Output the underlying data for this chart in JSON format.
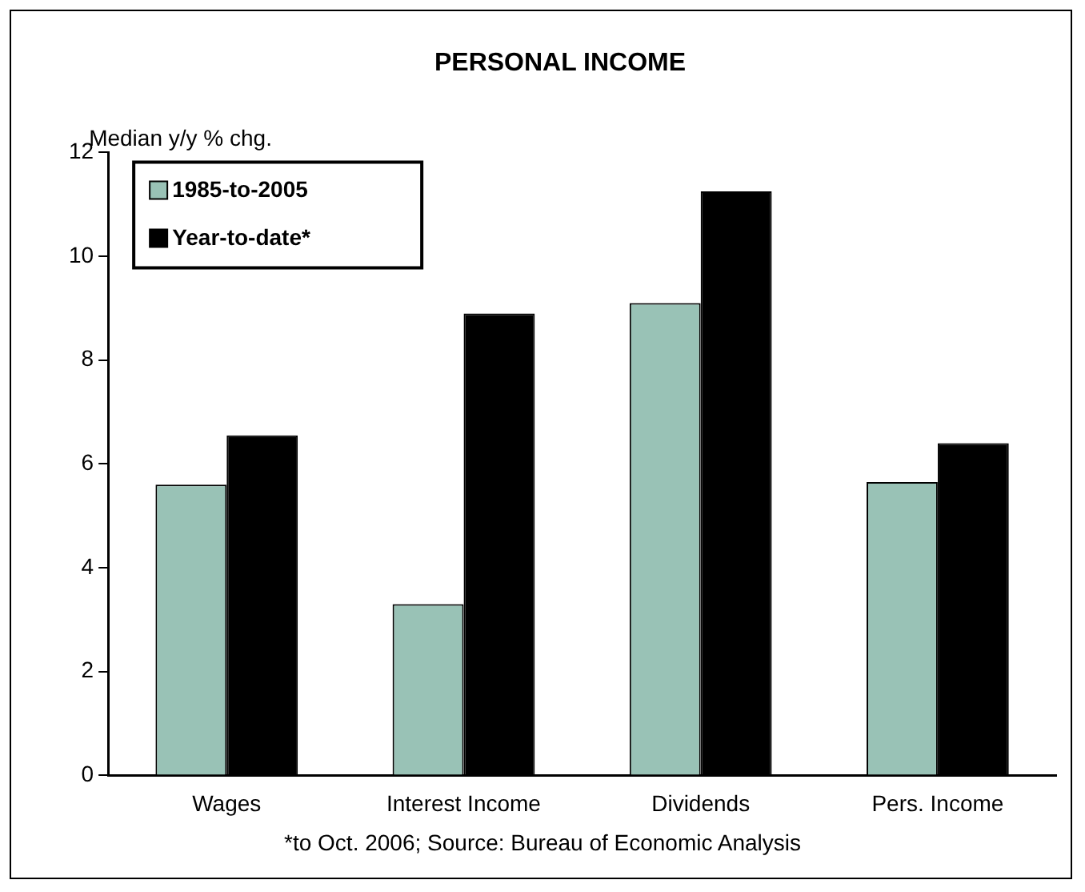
{
  "chart_data": {
    "type": "bar",
    "title": "PERSONAL INCOME",
    "ylabel": "Median y/y % chg.",
    "categories": [
      "Wages",
      "Interest Income",
      "Dividends",
      "Pers. Income"
    ],
    "series": [
      {
        "name": "1985-to-2005",
        "color": "#99c2b6",
        "values": [
          5.6,
          3.3,
          9.1,
          5.65
        ]
      },
      {
        "name": "Year-to-date*",
        "color": "#000000",
        "values": [
          6.55,
          8.9,
          11.25,
          6.4
        ]
      }
    ],
    "ylim": [
      0,
      12
    ],
    "yticks": [
      0,
      2,
      4,
      6,
      8,
      10,
      12
    ],
    "grid": false,
    "legend": "top left",
    "annotations": [
      "*to Oct. 2006; Source: Bureau of Economic Analysis"
    ]
  }
}
